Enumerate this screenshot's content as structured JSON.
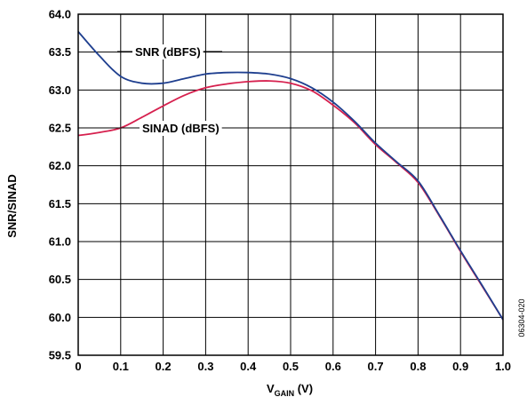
{
  "chart_data": {
    "type": "line",
    "xlabel_main": "V",
    "xlabel_sub": "GAIN",
    "xlabel_unit": " (V)",
    "ylabel": "SNR/SINAD",
    "xlim": [
      0,
      1.0
    ],
    "ylim": [
      59.5,
      64.0
    ],
    "x_ticks": [
      "0",
      "0.1",
      "0.2",
      "0.3",
      "0.4",
      "0.5",
      "0.6",
      "0.7",
      "0.8",
      "0.9",
      "1.0"
    ],
    "y_ticks": [
      "64.0",
      "63.5",
      "63.0",
      "62.5",
      "62.0",
      "61.5",
      "61.0",
      "60.5",
      "60.0",
      "59.5"
    ],
    "grid": true,
    "figure_id": "06304-020",
    "series": [
      {
        "name": "SNR (dBFS)",
        "color": "#1f3f8f",
        "x": [
          0,
          0.05,
          0.1,
          0.15,
          0.2,
          0.25,
          0.3,
          0.35,
          0.4,
          0.45,
          0.5,
          0.55,
          0.6,
          0.65,
          0.7,
          0.75,
          0.8,
          0.85,
          0.9,
          0.95,
          1.0
        ],
        "y": [
          63.77,
          63.45,
          63.18,
          63.09,
          63.09,
          63.15,
          63.21,
          63.23,
          63.23,
          63.21,
          63.15,
          63.03,
          62.84,
          62.59,
          62.3,
          62.05,
          61.8,
          61.35,
          60.88,
          60.43,
          59.97
        ]
      },
      {
        "name": "SINAD (dBFS)",
        "color": "#d6204e",
        "x": [
          0,
          0.05,
          0.1,
          0.15,
          0.2,
          0.25,
          0.3,
          0.35,
          0.4,
          0.45,
          0.5,
          0.55,
          0.6,
          0.65,
          0.7,
          0.75,
          0.8,
          0.85,
          0.9,
          0.95,
          1.0
        ],
        "y": [
          62.4,
          62.44,
          62.5,
          62.64,
          62.79,
          62.93,
          63.03,
          63.08,
          63.11,
          63.12,
          63.09,
          62.99,
          62.8,
          62.57,
          62.28,
          62.04,
          61.78,
          61.34,
          60.87,
          60.42,
          59.97
        ]
      }
    ]
  }
}
